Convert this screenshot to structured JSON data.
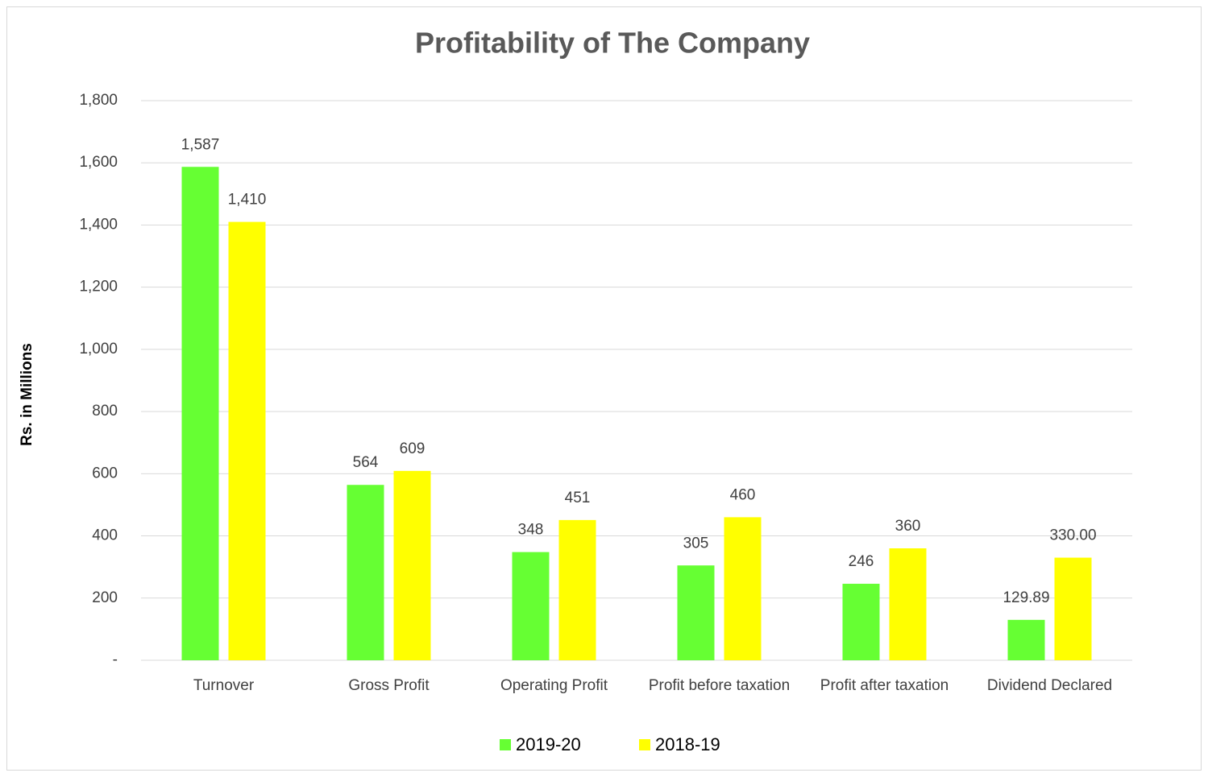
{
  "chart_data": {
    "type": "bar",
    "title": "Profitability of The Company",
    "y_label": "Rs. in Millions",
    "categories": [
      "Turnover",
      "Gross Profit",
      "Operating Profit",
      "Profit before taxation",
      "Profit after taxation",
      "Dividend Declared"
    ],
    "series": [
      {
        "name": "2019-20",
        "color": "#66ff33",
        "values": [
          1587,
          564,
          348,
          305,
          246,
          129.89
        ],
        "value_labels": [
          "1,587",
          "564",
          "348",
          "305",
          "246",
          "129.89"
        ]
      },
      {
        "name": "2018-19",
        "color": "#ffff00",
        "values": [
          1410,
          609,
          451,
          460,
          360,
          330
        ],
        "value_labels": [
          "1,410",
          "609",
          "451",
          "460",
          "360",
          "330.00"
        ]
      }
    ],
    "ylim": [
      0,
      1800
    ],
    "yticks": [
      {
        "value": 0,
        "label": "-"
      },
      {
        "value": 200,
        "label": "200"
      },
      {
        "value": 400,
        "label": "400"
      },
      {
        "value": 600,
        "label": "600"
      },
      {
        "value": 800,
        "label": "800"
      },
      {
        "value": 1000,
        "label": "1,000"
      },
      {
        "value": 1200,
        "label": "1,200"
      },
      {
        "value": 1400,
        "label": "1,400"
      },
      {
        "value": 1600,
        "label": "1,600"
      },
      {
        "value": 1800,
        "label": "1,800"
      }
    ],
    "grid": true,
    "legend": "bottom"
  }
}
